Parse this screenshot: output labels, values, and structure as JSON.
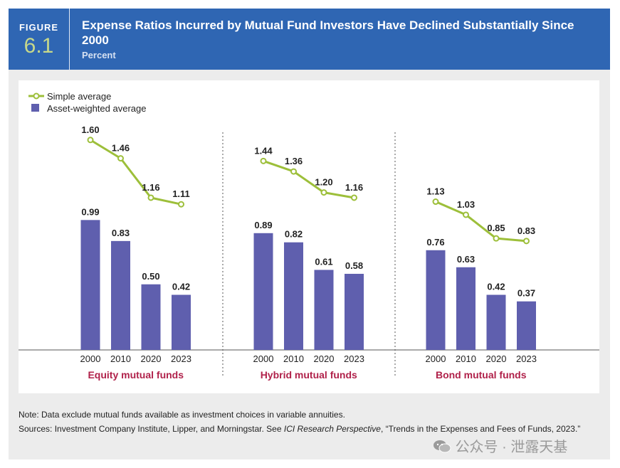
{
  "header": {
    "figure_word": "FIGURE",
    "figure_number": "6.1",
    "title": "Expense Ratios Incurred by Mutual Fund Investors Have Declined Substantially Since 2000",
    "subtitle": "Percent"
  },
  "colors": {
    "header_bg": "#2f66b3",
    "simple_average": "#9dbf3a",
    "asset_weighted": "#5f5fae",
    "group_label": "#b0214a"
  },
  "chart_data": {
    "type": "bar",
    "title": "Expense Ratios Incurred by Mutual Fund Investors Have Declined Substantially Since 2000",
    "ylabel": "Percent",
    "ylim": [
      0,
      1.8
    ],
    "legend": [
      "Simple average",
      "Asset-weighted average"
    ],
    "legend_position": "top-left",
    "groups": [
      {
        "name": "Equity mutual funds",
        "categories": [
          "2000",
          "2010",
          "2020",
          "2023"
        ],
        "series": [
          {
            "name": "Simple average",
            "type": "line",
            "values": [
              1.6,
              1.46,
              1.16,
              1.11
            ],
            "labels": [
              "1.60",
              "1.46",
              "1.16",
              "1.11"
            ]
          },
          {
            "name": "Asset-weighted average",
            "type": "bar",
            "values": [
              0.99,
              0.83,
              0.5,
              0.42
            ],
            "labels": [
              "0.99",
              "0.83",
              "0.50",
              "0.42"
            ]
          }
        ]
      },
      {
        "name": "Hybrid mutual funds",
        "categories": [
          "2000",
          "2010",
          "2020",
          "2023"
        ],
        "series": [
          {
            "name": "Simple average",
            "type": "line",
            "values": [
              1.44,
              1.36,
              1.2,
              1.16
            ],
            "labels": [
              "1.44",
              "1.36",
              "1.20",
              "1.16"
            ]
          },
          {
            "name": "Asset-weighted average",
            "type": "bar",
            "values": [
              0.89,
              0.82,
              0.61,
              0.58
            ],
            "labels": [
              "0.89",
              "0.82",
              "0.61",
              "0.58"
            ]
          }
        ]
      },
      {
        "name": "Bond mutual funds",
        "categories": [
          "2000",
          "2010",
          "2020",
          "2023"
        ],
        "series": [
          {
            "name": "Simple average",
            "type": "line",
            "values": [
              1.13,
              1.03,
              0.85,
              0.83
            ],
            "labels": [
              "1.13",
              "1.03",
              "0.85",
              "0.83"
            ]
          },
          {
            "name": "Asset-weighted average",
            "type": "bar",
            "values": [
              0.76,
              0.63,
              0.42,
              0.37
            ],
            "labels": [
              "0.76",
              "0.63",
              "0.42",
              "0.37"
            ]
          }
        ]
      }
    ]
  },
  "notes": {
    "note": "Note: Data exclude mutual funds available as investment choices in variable annuities.",
    "sources_prefix": "Sources: Investment Company Institute, Lipper, and Morningstar. See ",
    "sources_italic": "ICI Research Perspective",
    "sources_suffix": ", “Trends in the Expenses and Fees of Funds, 2023.”"
  },
  "watermark": {
    "icon": "wechat-icon",
    "text": "公众号 · 泄露天基"
  }
}
